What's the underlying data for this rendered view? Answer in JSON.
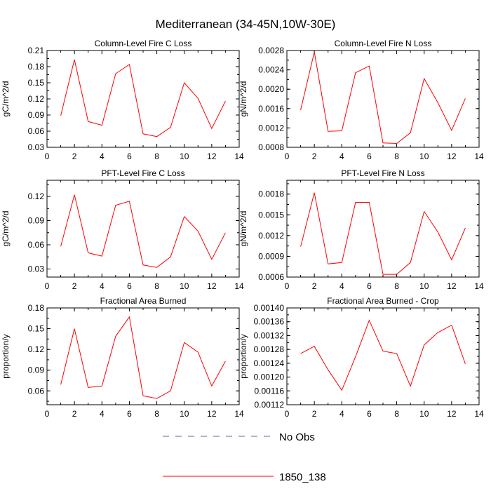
{
  "figure": {
    "title": "Mediterranean (34-45N,10W-30E)"
  },
  "legend": {
    "items": [
      {
        "label": "No Obs",
        "color": "#6666aa",
        "style": "dashed"
      },
      {
        "label": "1850_138",
        "color": "#ff0000",
        "style": "solid"
      }
    ]
  },
  "chart_data": [
    {
      "type": "line",
      "title": "Column-Level Fire C Loss",
      "xlabel": "",
      "ylabel": "gC/m^2/d",
      "xlim": [
        0,
        14
      ],
      "ylim": [
        0.03,
        0.21
      ],
      "xticks": [
        0,
        2,
        4,
        6,
        8,
        10,
        12,
        14
      ],
      "yticks": [
        0.03,
        0.06,
        0.09,
        0.12,
        0.15,
        0.18,
        0.21
      ],
      "ytick_labels": [
        "0.03",
        "0.06",
        "0.09",
        "0.12",
        "0.15",
        "0.18",
        "0.21"
      ],
      "x": [
        1,
        2,
        3,
        4,
        5,
        6,
        7,
        8,
        9,
        10,
        11,
        12,
        13
      ],
      "series": [
        {
          "name": "1850_138",
          "color": "#ff0000",
          "values": [
            0.089,
            0.193,
            0.078,
            0.071,
            0.167,
            0.184,
            0.055,
            0.05,
            0.067,
            0.15,
            0.121,
            0.065,
            0.116
          ]
        }
      ]
    },
    {
      "type": "line",
      "title": "Column-Level Fire N Loss",
      "xlabel": "",
      "ylabel": "gN/m^2/d",
      "xlim": [
        0,
        14
      ],
      "ylim": [
        0.0008,
        0.0028
      ],
      "xticks": [
        0,
        2,
        4,
        6,
        8,
        10,
        12,
        14
      ],
      "yticks": [
        0.0008,
        0.0012,
        0.0016,
        0.002,
        0.0024,
        0.0028
      ],
      "ytick_labels": [
        "0.0008",
        "0.0012",
        "0.0016",
        "0.0020",
        "0.0024",
        "0.0028"
      ],
      "x": [
        1,
        2,
        3,
        4,
        5,
        6,
        7,
        8,
        9,
        10,
        11,
        12,
        13
      ],
      "series": [
        {
          "name": "1850_138",
          "color": "#ff0000",
          "values": [
            0.00157,
            0.00277,
            0.00113,
            0.00114,
            0.00234,
            0.00248,
            0.00089,
            0.00088,
            0.0011,
            0.00222,
            0.00172,
            0.00115,
            0.00181
          ]
        }
      ]
    },
    {
      "type": "line",
      "title": "PFT-Level Fire C Loss",
      "xlabel": "",
      "ylabel": "gC/m^2/d",
      "xlim": [
        0,
        14
      ],
      "ylim": [
        0.02,
        0.14
      ],
      "xticks": [
        0,
        2,
        4,
        6,
        8,
        10,
        12,
        14
      ],
      "yticks": [
        0.03,
        0.06,
        0.09,
        0.12
      ],
      "ytick_labels": [
        "0.03",
        "0.06",
        "0.09",
        "0.12"
      ],
      "x": [
        1,
        2,
        3,
        4,
        5,
        6,
        7,
        8,
        9,
        10,
        11,
        12,
        13
      ],
      "series": [
        {
          "name": "1850_138",
          "color": "#ff0000",
          "values": [
            0.058,
            0.122,
            0.05,
            0.046,
            0.109,
            0.114,
            0.035,
            0.032,
            0.045,
            0.095,
            0.077,
            0.042,
            0.075
          ]
        }
      ]
    },
    {
      "type": "line",
      "title": "PFT-Level Fire N Loss",
      "xlabel": "",
      "ylabel": "gN/m^2/d",
      "xlim": [
        0,
        14
      ],
      "ylim": [
        0.0006,
        0.002
      ],
      "xticks": [
        0,
        2,
        4,
        6,
        8,
        10,
        12,
        14
      ],
      "yticks": [
        0.0006,
        0.0009,
        0.0012,
        0.0015,
        0.0018
      ],
      "ytick_labels": [
        "0.0006",
        "0.0009",
        "0.0012",
        "0.0015",
        "0.0018"
      ],
      "x": [
        1,
        2,
        3,
        4,
        5,
        6,
        7,
        8,
        9,
        10,
        11,
        12,
        13
      ],
      "series": [
        {
          "name": "1850_138",
          "color": "#ff0000",
          "values": [
            0.00104,
            0.00182,
            0.00079,
            0.00081,
            0.00168,
            0.00168,
            0.00064,
            0.00064,
            0.00081,
            0.00155,
            0.00125,
            0.00085,
            0.00131
          ]
        }
      ]
    },
    {
      "type": "line",
      "title": "Fractional Area Burned",
      "xlabel": "",
      "ylabel": "proportion/y",
      "xlim": [
        0,
        14
      ],
      "ylim": [
        0.04,
        0.18
      ],
      "xticks": [
        0,
        2,
        4,
        6,
        8,
        10,
        12,
        14
      ],
      "yticks": [
        0.06,
        0.09,
        0.12,
        0.15,
        0.18
      ],
      "ytick_labels": [
        "0.06",
        "0.09",
        "0.12",
        "0.15",
        "0.18"
      ],
      "x": [
        1,
        2,
        3,
        4,
        5,
        6,
        7,
        8,
        9,
        10,
        11,
        12,
        13
      ],
      "series": [
        {
          "name": "1850_138",
          "color": "#ff0000",
          "values": [
            0.069,
            0.15,
            0.065,
            0.067,
            0.139,
            0.167,
            0.053,
            0.049,
            0.06,
            0.13,
            0.116,
            0.067,
            0.103
          ]
        }
      ]
    },
    {
      "type": "line",
      "title": "Fractional Area Burned - Crop",
      "xlabel": "",
      "ylabel": "proportion/y",
      "xlim": [
        0,
        14
      ],
      "ylim": [
        0.00112,
        0.0014
      ],
      "xticks": [
        0,
        2,
        4,
        6,
        8,
        10,
        12,
        14
      ],
      "yticks": [
        0.00112,
        0.00116,
        0.0012,
        0.00124,
        0.00128,
        0.00132,
        0.00136,
        0.0014
      ],
      "ytick_labels": [
        "0.00112",
        "0.00116",
        "0.00120",
        "0.00124",
        "0.00128",
        "0.00132",
        "0.00136",
        "0.00140"
      ],
      "x": [
        1,
        2,
        3,
        4,
        5,
        6,
        7,
        8,
        9,
        10,
        11,
        12,
        13
      ],
      "series": [
        {
          "name": "1850_138",
          "color": "#ff0000",
          "values": [
            0.001268,
            0.001289,
            0.001221,
            0.001162,
            0.001259,
            0.001364,
            0.001275,
            0.001268,
            0.001174,
            0.001293,
            0.001329,
            0.00135,
            0.001238
          ]
        }
      ]
    }
  ]
}
